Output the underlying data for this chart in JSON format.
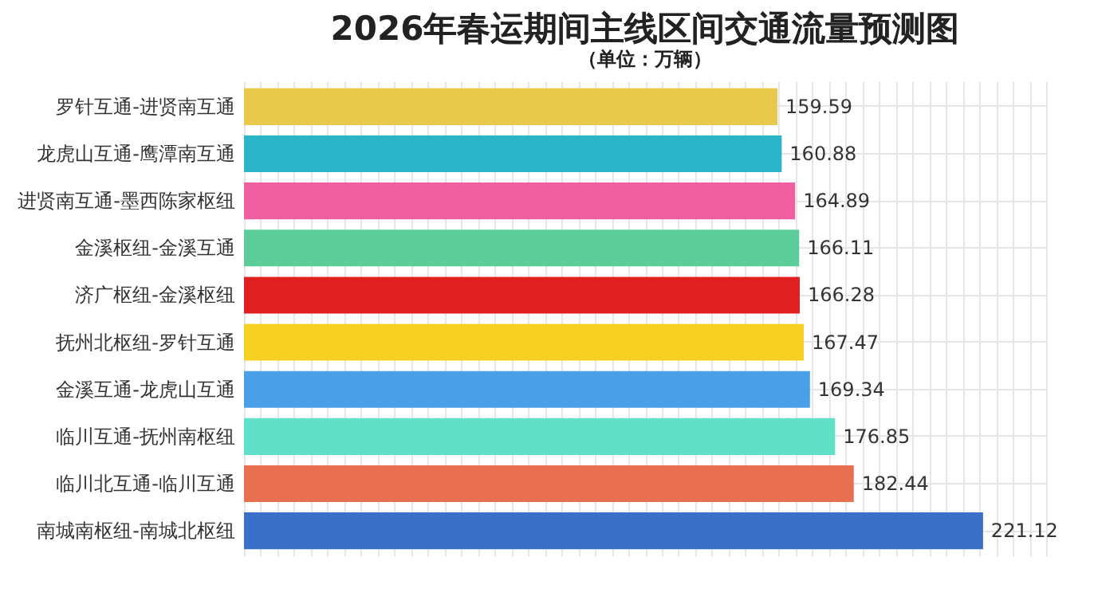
{
  "chart_data": {
    "type": "bar",
    "orientation": "horizontal",
    "title": "2026年春运期间主线区间交通流量预测图",
    "subtitle": "（单位：万辆）",
    "categories": [
      "罗针互通-进贤南互通",
      "龙虎山互通-鹰潭南互通",
      "进贤南互通-墨西陈家枢纽",
      "金溪枢纽-金溪互通",
      "济广枢纽-金溪枢纽",
      "抚州北枢纽-罗针互通",
      "金溪互通-龙虎山互通",
      "临川互通-抚州南枢纽",
      "临川北互通-临川互通",
      "南城南枢纽-南城北枢纽"
    ],
    "values": [
      159.59,
      160.88,
      164.89,
      166.11,
      166.28,
      167.47,
      169.34,
      176.85,
      182.44,
      221.12
    ],
    "colors": [
      "#e8c94a",
      "#2bb5c8",
      "#f060a0",
      "#5ccc98",
      "#e02020",
      "#f5d020",
      "#4aa0e8",
      "#60e0c8",
      "#e87050",
      "#3a70c8"
    ],
    "data_labels": true,
    "grid": true,
    "tick_labels": "y"
  }
}
